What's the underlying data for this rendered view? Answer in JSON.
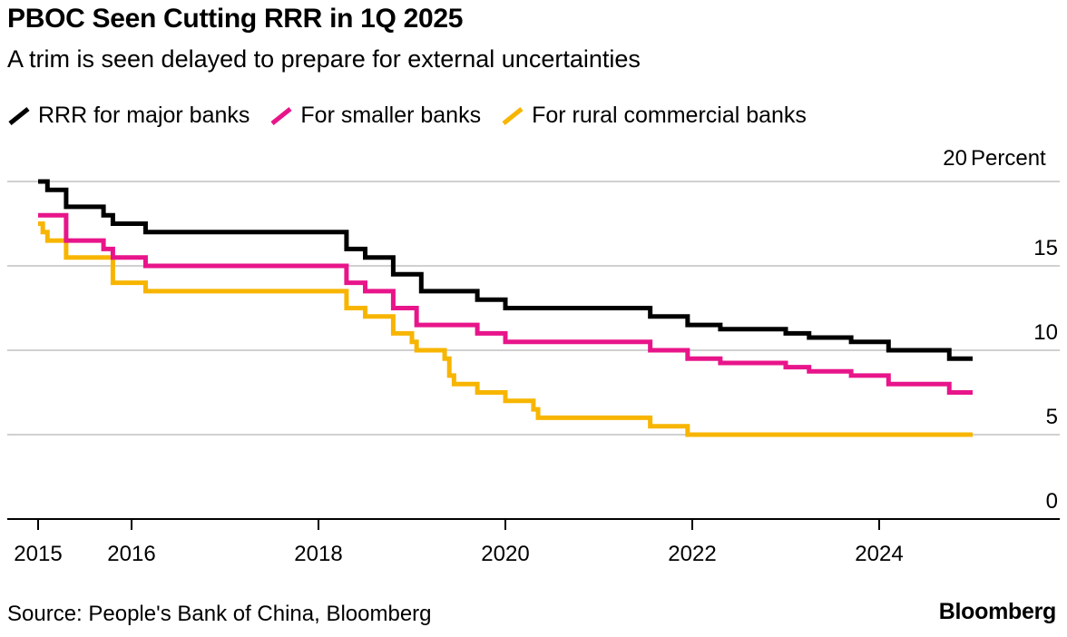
{
  "header": {
    "title": "PBOC Seen Cutting RRR in 1Q 2025",
    "subtitle": "A trim is seen delayed to prepare for external uncertainties"
  },
  "legend": {
    "items": [
      {
        "label": "RRR for major banks",
        "color": "#000000"
      },
      {
        "label": "For smaller banks",
        "color": "#e8158a"
      },
      {
        "label": "For rural commercial banks",
        "color": "#f7b500"
      }
    ]
  },
  "footer": {
    "source": "Source: People's Bank of China, Bloomberg",
    "brand": "Bloomberg"
  },
  "chart_data": {
    "type": "line",
    "step": true,
    "ylabel": "Percent",
    "ylim": [
      0,
      20
    ],
    "yticks": [
      0,
      5,
      10,
      15,
      20
    ],
    "xlim": [
      2015.0,
      2026.0
    ],
    "xticks": [
      {
        "value": 2015,
        "label": "2015"
      },
      {
        "value": 2016,
        "label": "2016"
      },
      {
        "value": 2018,
        "label": "2018"
      },
      {
        "value": 2020,
        "label": "2020"
      },
      {
        "value": 2022,
        "label": "2022"
      },
      {
        "value": 2024,
        "label": "2024"
      }
    ],
    "grid": true,
    "legend_position": "top",
    "series": [
      {
        "name": "RRR for major banks",
        "color": "#000000",
        "points": [
          [
            2015.0,
            20.0
          ],
          [
            2015.1,
            19.5
          ],
          [
            2015.3,
            18.5
          ],
          [
            2015.7,
            18.0
          ],
          [
            2015.8,
            17.5
          ],
          [
            2016.15,
            17.0
          ],
          [
            2018.3,
            16.0
          ],
          [
            2018.5,
            15.5
          ],
          [
            2018.8,
            14.5
          ],
          [
            2019.1,
            13.5
          ],
          [
            2019.7,
            13.0
          ],
          [
            2020.0,
            12.5
          ],
          [
            2021.55,
            12.0
          ],
          [
            2021.95,
            11.5
          ],
          [
            2022.3,
            11.25
          ],
          [
            2023.0,
            11.0
          ],
          [
            2023.25,
            10.75
          ],
          [
            2023.7,
            10.5
          ],
          [
            2024.1,
            10.0
          ],
          [
            2024.75,
            9.5
          ],
          [
            2025.0,
            9.5
          ]
        ]
      },
      {
        "name": "For smaller banks",
        "color": "#e8158a",
        "points": [
          [
            2015.0,
            18.0
          ],
          [
            2015.3,
            16.5
          ],
          [
            2015.7,
            16.0
          ],
          [
            2015.8,
            15.5
          ],
          [
            2016.15,
            15.0
          ],
          [
            2018.3,
            14.0
          ],
          [
            2018.5,
            13.5
          ],
          [
            2018.8,
            12.5
          ],
          [
            2019.05,
            11.5
          ],
          [
            2019.7,
            11.0
          ],
          [
            2020.0,
            10.5
          ],
          [
            2021.55,
            10.0
          ],
          [
            2021.95,
            9.5
          ],
          [
            2022.3,
            9.25
          ],
          [
            2023.0,
            9.0
          ],
          [
            2023.25,
            8.75
          ],
          [
            2023.7,
            8.5
          ],
          [
            2024.1,
            8.0
          ],
          [
            2024.75,
            7.5
          ],
          [
            2025.0,
            7.5
          ]
        ]
      },
      {
        "name": "For rural commercial banks",
        "color": "#f7b500",
        "points": [
          [
            2015.0,
            17.5
          ],
          [
            2015.05,
            17.0
          ],
          [
            2015.1,
            16.5
          ],
          [
            2015.3,
            15.5
          ],
          [
            2015.8,
            15.0
          ],
          [
            2015.8,
            14.0
          ],
          [
            2016.15,
            13.5
          ],
          [
            2018.3,
            12.5
          ],
          [
            2018.5,
            12.0
          ],
          [
            2018.8,
            11.0
          ],
          [
            2019.0,
            10.5
          ],
          [
            2019.05,
            10.0
          ],
          [
            2019.35,
            9.5
          ],
          [
            2019.4,
            8.5
          ],
          [
            2019.45,
            8.0
          ],
          [
            2019.7,
            7.5
          ],
          [
            2020.0,
            7.0
          ],
          [
            2020.3,
            6.5
          ],
          [
            2020.35,
            6.0
          ],
          [
            2021.55,
            5.5
          ],
          [
            2021.95,
            5.0
          ],
          [
            2025.0,
            5.0
          ]
        ]
      }
    ]
  }
}
